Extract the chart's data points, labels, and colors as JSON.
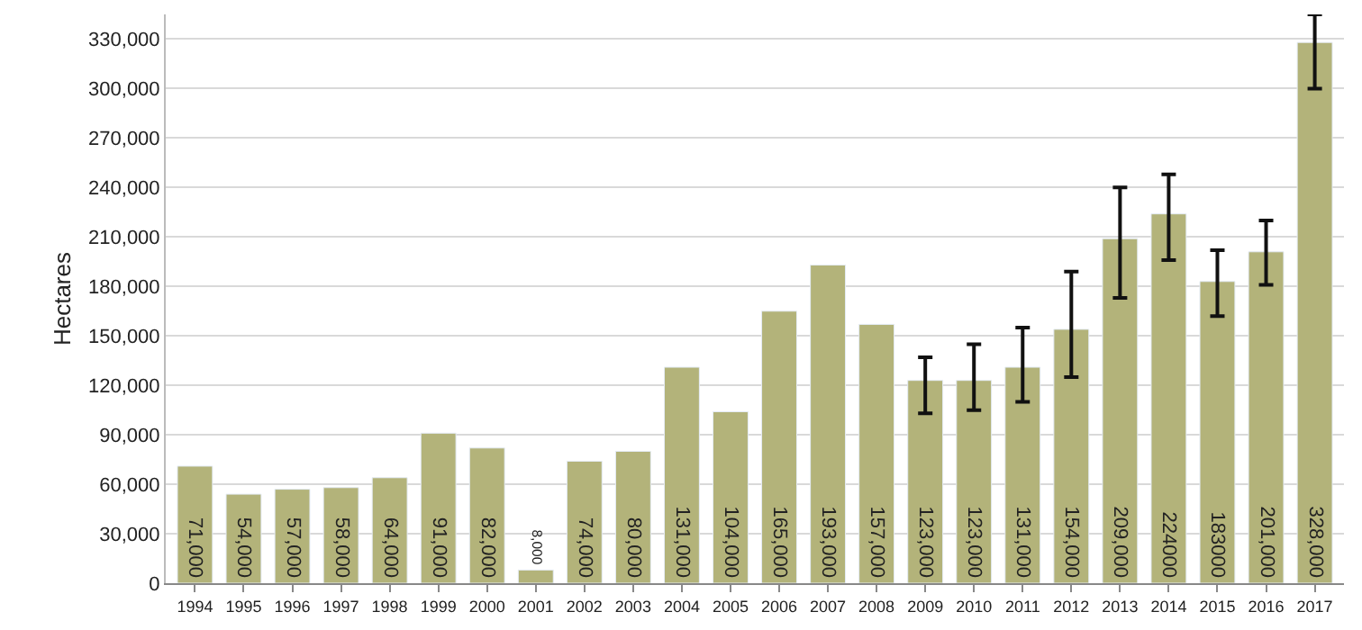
{
  "chart_data": {
    "type": "bar",
    "ylabel": "Hectares",
    "categories": [
      "1994",
      "1995",
      "1996",
      "1997",
      "1998",
      "1999",
      "2000",
      "2001",
      "2002",
      "2003",
      "2004",
      "2005",
      "2006",
      "2007",
      "2008",
      "2009",
      "2010",
      "2011",
      "2012",
      "2013",
      "2014",
      "2015",
      "2016",
      "2017"
    ],
    "values": [
      71000,
      54000,
      57000,
      58000,
      64000,
      91000,
      82000,
      8000,
      74000,
      80000,
      131000,
      104000,
      165000,
      193000,
      157000,
      123000,
      123000,
      131000,
      154000,
      209000,
      224000,
      183000,
      201000,
      328000
    ],
    "value_labels": [
      "71,000",
      "54,000",
      "57,000",
      "58,000",
      "64,000",
      "91,000",
      "82,000",
      "8,000",
      "74,000",
      "80,000",
      "131,000",
      "104,000",
      "165,000",
      "193,000",
      "157,000",
      "123,000",
      "123,000",
      "131,000",
      "154,000",
      "209,000",
      "224000",
      "183000",
      "201,000",
      "328,000"
    ],
    "errors": [
      null,
      null,
      null,
      null,
      null,
      null,
      null,
      null,
      null,
      null,
      null,
      null,
      null,
      null,
      null,
      [
        103000,
        137000
      ],
      [
        105000,
        145000
      ],
      [
        110000,
        155000
      ],
      [
        125000,
        189000
      ],
      [
        173000,
        240000
      ],
      [
        196000,
        248000
      ],
      [
        162000,
        202000
      ],
      [
        181000,
        220000
      ],
      [
        300000,
        345000
      ]
    ],
    "color": "#b3b37a",
    "ylim": [
      0,
      345000
    ],
    "yticks": [
      {
        "value": 0,
        "label": "0"
      },
      {
        "value": 30000,
        "label": "30,000"
      },
      {
        "value": 60000,
        "label": "60,000"
      },
      {
        "value": 90000,
        "label": "90,000"
      },
      {
        "value": 120000,
        "label": "120,000"
      },
      {
        "value": 150000,
        "label": "150,000"
      },
      {
        "value": 180000,
        "label": "180,000"
      },
      {
        "value": 210000,
        "label": "210,000"
      },
      {
        "value": 240000,
        "label": "240,000"
      },
      {
        "value": 270000,
        "label": "270,000"
      },
      {
        "value": 300000,
        "label": "300,000"
      },
      {
        "value": 330000,
        "label": "330,000"
      }
    ],
    "grid": "y"
  }
}
